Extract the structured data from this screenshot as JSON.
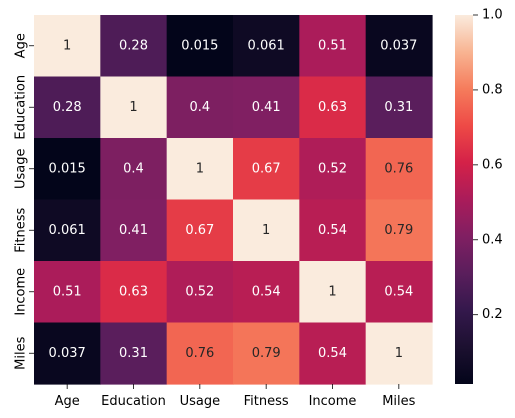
{
  "chart_data": {
    "type": "heatmap",
    "title": "",
    "xlabel": "",
    "ylabel": "",
    "x_categories": [
      "Age",
      "Education",
      "Usage",
      "Fitness",
      "Income",
      "Miles"
    ],
    "y_categories": [
      "Age",
      "Education",
      "Usage",
      "Fitness",
      "Income",
      "Miles"
    ],
    "values": [
      [
        1,
        0.28,
        0.015,
        0.061,
        0.51,
        0.037
      ],
      [
        0.28,
        1,
        0.4,
        0.41,
        0.63,
        0.31
      ],
      [
        0.015,
        0.4,
        1,
        0.67,
        0.52,
        0.76
      ],
      [
        0.061,
        0.41,
        0.67,
        1,
        0.54,
        0.79
      ],
      [
        0.51,
        0.63,
        0.52,
        0.54,
        1,
        0.54
      ],
      [
        0.037,
        0.31,
        0.76,
        0.79,
        0.54,
        1
      ]
    ],
    "cell_labels": [
      [
        "1",
        "0.28",
        "0.015",
        "0.061",
        "0.51",
        "0.037"
      ],
      [
        "0.28",
        "1",
        "0.4",
        "0.41",
        "0.63",
        "0.31"
      ],
      [
        "0.015",
        "0.4",
        "1",
        "0.67",
        "0.52",
        "0.76"
      ],
      [
        "0.061",
        "0.41",
        "0.67",
        "1",
        "0.54",
        "0.79"
      ],
      [
        "0.51",
        "0.63",
        "0.52",
        "0.54",
        "1",
        "0.54"
      ],
      [
        "0.037",
        "0.31",
        "0.76",
        "0.79",
        "0.54",
        "1"
      ]
    ],
    "colorbar": {
      "min": 0.015,
      "max": 1.0,
      "ticks": [
        0.2,
        0.4,
        0.6,
        0.8,
        1.0
      ],
      "tick_labels": [
        "0.2",
        "0.4",
        "0.6",
        "0.8",
        "1.0"
      ],
      "colormap": "rocket"
    },
    "grid": false,
    "legend": "colorbar-right"
  }
}
